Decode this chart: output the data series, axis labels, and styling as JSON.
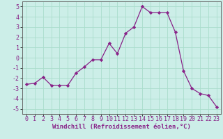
{
  "x": [
    0,
    1,
    2,
    3,
    4,
    5,
    6,
    7,
    8,
    9,
    10,
    11,
    12,
    13,
    14,
    15,
    16,
    17,
    18,
    19,
    20,
    21,
    22,
    23
  ],
  "y": [
    -2.6,
    -2.5,
    -1.9,
    -2.7,
    -2.7,
    -2.7,
    -1.5,
    -0.9,
    -0.2,
    -0.2,
    1.4,
    0.4,
    2.4,
    3.0,
    5.0,
    4.4,
    4.4,
    4.4,
    2.5,
    -1.3,
    -3.0,
    -3.5,
    -3.7,
    -4.8
  ],
  "line_color": "#882288",
  "marker": "D",
  "marker_size": 2.2,
  "bg_color": "#cceee8",
  "grid_color": "#aaddcc",
  "xlabel": "Windchill (Refroidissement éolien,°C)",
  "xlim": [
    -0.5,
    23.5
  ],
  "ylim": [
    -5.5,
    5.5
  ],
  "xticks": [
    0,
    1,
    2,
    3,
    4,
    5,
    6,
    7,
    8,
    9,
    10,
    11,
    12,
    13,
    14,
    15,
    16,
    17,
    18,
    19,
    20,
    21,
    22,
    23
  ],
  "yticks": [
    -5,
    -4,
    -3,
    -2,
    -1,
    0,
    1,
    2,
    3,
    4,
    5
  ],
  "xlabel_fontsize": 6.5,
  "tick_fontsize": 6.0
}
